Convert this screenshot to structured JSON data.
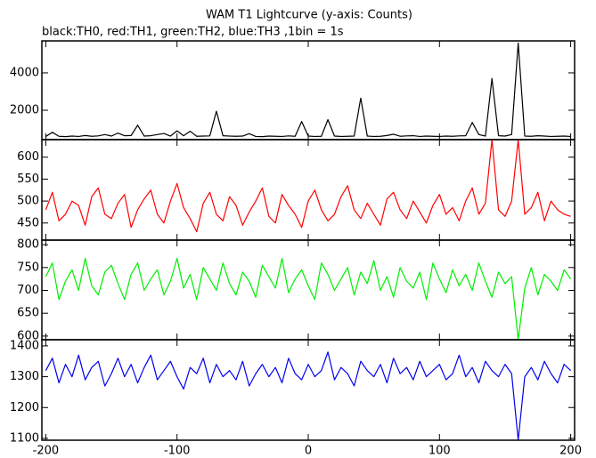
{
  "chart_data": [
    {
      "type": "line",
      "title": "WAM T1 Lightcurve (y-axis: Counts)",
      "subtitle": "black:TH0, red:TH1, green:TH2, blue:TH3 ,1bin = 1s",
      "x": [
        -200,
        -195,
        -190,
        -185,
        -180,
        -175,
        -170,
        -165,
        -160,
        -155,
        -150,
        -145,
        -140,
        -135,
        -130,
        -125,
        -120,
        -115,
        -110,
        -105,
        -100,
        -95,
        -90,
        -85,
        -80,
        -75,
        -70,
        -65,
        -60,
        -55,
        -50,
        -45,
        -40,
        -35,
        -30,
        -25,
        -20,
        -15,
        -10,
        -5,
        0,
        5,
        10,
        15,
        20,
        25,
        30,
        35,
        40,
        45,
        50,
        55,
        60,
        65,
        70,
        75,
        80,
        85,
        90,
        95,
        100,
        105,
        110,
        115,
        120,
        125,
        130,
        135,
        140,
        145,
        150,
        155,
        160,
        165,
        170,
        175,
        180,
        185,
        190,
        195,
        200
      ],
      "xlim": [
        -203,
        203
      ],
      "xticks": [
        -200,
        -100,
        0,
        100,
        200
      ],
      "ylim": [
        430,
        5710
      ],
      "yticks": [
        2000,
        4000
      ],
      "series": [
        {
          "name": "TH0",
          "color": "#000000",
          "values": [
            600,
            820,
            610,
            590,
            620,
            600,
            650,
            610,
            630,
            700,
            620,
            780,
            640,
            650,
            1200,
            620,
            640,
            700,
            760,
            620,
            900,
            640,
            880,
            610,
            620,
            630,
            1950,
            640,
            620,
            610,
            620,
            750,
            600,
            590,
            620,
            610,
            600,
            630,
            610,
            1400,
            620,
            600,
            610,
            1500,
            620,
            600,
            610,
            620,
            2650,
            620,
            600,
            610,
            650,
            720,
            610,
            630,
            640,
            600,
            620,
            610,
            600,
            620,
            610,
            630,
            640,
            1350,
            700,
            620,
            3700,
            640,
            620,
            700,
            5600,
            620,
            610,
            640,
            620,
            600,
            610,
            620,
            600
          ]
        }
      ]
    },
    {
      "type": "line",
      "x": [
        -200,
        -195,
        -190,
        -185,
        -180,
        -175,
        -170,
        -165,
        -160,
        -155,
        -150,
        -145,
        -140,
        -135,
        -130,
        -125,
        -120,
        -115,
        -110,
        -105,
        -100,
        -95,
        -90,
        -85,
        -80,
        -75,
        -70,
        -65,
        -60,
        -55,
        -50,
        -45,
        -40,
        -35,
        -30,
        -25,
        -20,
        -15,
        -10,
        -5,
        0,
        5,
        10,
        15,
        20,
        25,
        30,
        35,
        40,
        45,
        50,
        55,
        60,
        65,
        70,
        75,
        80,
        85,
        90,
        95,
        100,
        105,
        110,
        115,
        120,
        125,
        130,
        135,
        140,
        145,
        150,
        155,
        160,
        165,
        170,
        175,
        180,
        185,
        190,
        195,
        200
      ],
      "xlim": [
        -203,
        203
      ],
      "xticks": [
        -200,
        -100,
        0,
        100,
        200
      ],
      "ylim": [
        411,
        640
      ],
      "yticks": [
        450,
        500,
        550,
        600
      ],
      "series": [
        {
          "name": "TH1",
          "color": "#ff0000",
          "values": [
            480,
            520,
            455,
            470,
            500,
            490,
            445,
            510,
            530,
            470,
            460,
            495,
            515,
            440,
            480,
            505,
            525,
            470,
            450,
            500,
            540,
            485,
            460,
            430,
            495,
            520,
            470,
            455,
            510,
            490,
            445,
            475,
            500,
            530,
            465,
            450,
            515,
            490,
            470,
            440,
            500,
            525,
            480,
            455,
            470,
            510,
            535,
            480,
            460,
            495,
            470,
            445,
            505,
            520,
            480,
            460,
            500,
            475,
            450,
            490,
            515,
            470,
            485,
            455,
            500,
            530,
            470,
            495,
            640,
            480,
            465,
            500,
            640,
            470,
            485,
            520,
            455,
            500,
            480,
            470,
            465
          ]
        }
      ]
    },
    {
      "type": "line",
      "x": [
        -200,
        -195,
        -190,
        -185,
        -180,
        -175,
        -170,
        -165,
        -160,
        -155,
        -150,
        -145,
        -140,
        -135,
        -130,
        -125,
        -120,
        -115,
        -110,
        -105,
        -100,
        -95,
        -90,
        -85,
        -80,
        -75,
        -70,
        -65,
        -60,
        -55,
        -50,
        -45,
        -40,
        -35,
        -30,
        -25,
        -20,
        -15,
        -10,
        -5,
        0,
        5,
        10,
        15,
        20,
        25,
        30,
        35,
        40,
        45,
        50,
        55,
        60,
        65,
        70,
        75,
        80,
        85,
        90,
        95,
        100,
        105,
        110,
        115,
        120,
        125,
        130,
        135,
        140,
        145,
        150,
        155,
        160,
        165,
        170,
        175,
        180,
        185,
        190,
        195,
        200
      ],
      "xlim": [
        -203,
        203
      ],
      "xticks": [
        -200,
        -100,
        0,
        100,
        200
      ],
      "ylim": [
        592,
        810
      ],
      "yticks": [
        600,
        650,
        700,
        750,
        800
      ],
      "series": [
        {
          "name": "TH2",
          "color": "#00ee00",
          "values": [
            730,
            760,
            680,
            720,
            745,
            700,
            770,
            710,
            690,
            740,
            755,
            715,
            680,
            735,
            760,
            700,
            725,
            745,
            690,
            720,
            770,
            705,
            735,
            680,
            750,
            725,
            700,
            760,
            715,
            690,
            740,
            720,
            685,
            755,
            730,
            705,
            770,
            695,
            725,
            745,
            710,
            680,
            760,
            735,
            700,
            725,
            750,
            690,
            740,
            715,
            765,
            700,
            730,
            685,
            750,
            720,
            705,
            740,
            680,
            760,
            725,
            695,
            745,
            710,
            735,
            700,
            760,
            720,
            685,
            740,
            715,
            730,
            592,
            705,
            750,
            690,
            735,
            720,
            700,
            745,
            725
          ]
        }
      ]
    },
    {
      "type": "line",
      "x": [
        -200,
        -195,
        -190,
        -185,
        -180,
        -175,
        -170,
        -165,
        -160,
        -155,
        -150,
        -145,
        -140,
        -135,
        -130,
        -125,
        -120,
        -115,
        -110,
        -105,
        -100,
        -95,
        -90,
        -85,
        -80,
        -75,
        -70,
        -65,
        -60,
        -55,
        -50,
        -45,
        -40,
        -35,
        -30,
        -25,
        -20,
        -15,
        -10,
        -5,
        0,
        5,
        10,
        15,
        20,
        25,
        30,
        35,
        40,
        45,
        50,
        55,
        60,
        65,
        70,
        75,
        80,
        85,
        90,
        95,
        100,
        105,
        110,
        115,
        120,
        125,
        130,
        135,
        140,
        145,
        150,
        155,
        160,
        165,
        170,
        175,
        180,
        185,
        190,
        195,
        200
      ],
      "xlim": [
        -203,
        203
      ],
      "xticks": [
        -200,
        -100,
        0,
        100,
        200
      ],
      "ylim": [
        1094,
        1420
      ],
      "yticks": [
        1100,
        1200,
        1300,
        1400
      ],
      "series": [
        {
          "name": "TH3",
          "color": "#0000ee",
          "values": [
            1320,
            1360,
            1280,
            1340,
            1300,
            1370,
            1290,
            1330,
            1350,
            1270,
            1310,
            1360,
            1300,
            1340,
            1280,
            1330,
            1370,
            1290,
            1320,
            1350,
            1300,
            1260,
            1330,
            1310,
            1360,
            1280,
            1340,
            1300,
            1320,
            1290,
            1350,
            1270,
            1310,
            1340,
            1300,
            1330,
            1280,
            1360,
            1310,
            1290,
            1340,
            1300,
            1320,
            1380,
            1290,
            1330,
            1310,
            1270,
            1350,
            1320,
            1300,
            1340,
            1280,
            1360,
            1310,
            1330,
            1290,
            1350,
            1300,
            1320,
            1340,
            1290,
            1310,
            1370,
            1300,
            1330,
            1280,
            1350,
            1320,
            1300,
            1340,
            1310,
            1094,
            1300,
            1330,
            1290,
            1350,
            1310,
            1280,
            1340,
            1320
          ]
        }
      ]
    }
  ]
}
